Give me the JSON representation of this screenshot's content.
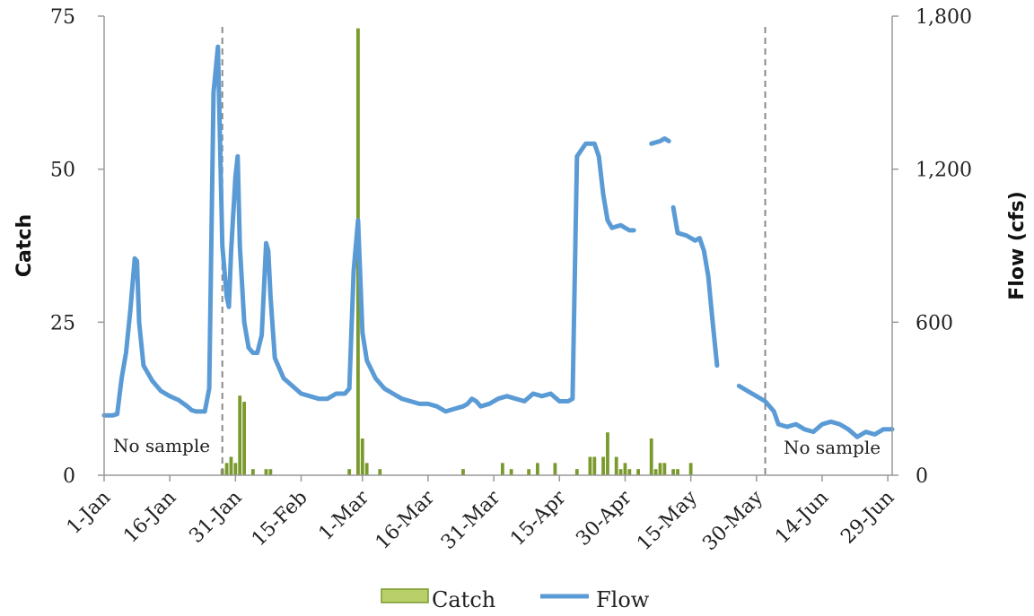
{
  "chart_data": {
    "type": "bar+line",
    "title": "",
    "xlabel": "",
    "y_left_label": "Catch",
    "y_right_label": "Flow (cfs)",
    "y_left_lim": [
      0,
      75
    ],
    "y_right_lim": [
      0,
      1800
    ],
    "y_left_ticks": [
      "0",
      "25",
      "50",
      "75"
    ],
    "y_right_ticks": [
      "0",
      "600",
      "1,200",
      "1,800"
    ],
    "x_range_days": [
      1,
      181
    ],
    "x_ticks": [
      {
        "day": 1,
        "label": "1-Jan"
      },
      {
        "day": 16,
        "label": "16-Jan"
      },
      {
        "day": 31,
        "label": "31-Jan"
      },
      {
        "day": 46,
        "label": "15-Feb"
      },
      {
        "day": 60,
        "label": "1-Mar"
      },
      {
        "day": 75,
        "label": "16-Mar"
      },
      {
        "day": 90,
        "label": "31-Mar"
      },
      {
        "day": 105,
        "label": "15-Apr"
      },
      {
        "day": 120,
        "label": "30-Apr"
      },
      {
        "day": 135,
        "label": "15-May"
      },
      {
        "day": 150,
        "label": "30-May"
      },
      {
        "day": 165,
        "label": "14-Jun"
      },
      {
        "day": 180,
        "label": "29-Jun"
      }
    ],
    "no_sample_markers": [
      28,
      152
    ],
    "annotations": [
      "No sample",
      "No sample"
    ],
    "legend": [
      "Catch",
      "Flow"
    ],
    "legend_position": "bottom",
    "colors": {
      "catch": "#7a9a2e",
      "catch_light": "#b9cf6a",
      "flow": "#5b9bd5",
      "marker": "#8a8a8a",
      "axis": "#999999"
    },
    "catch": {
      "name": "Catch",
      "points": [
        [
          28,
          1
        ],
        [
          29,
          2
        ],
        [
          30,
          3
        ],
        [
          31,
          2
        ],
        [
          32,
          13
        ],
        [
          33,
          12
        ],
        [
          35,
          1
        ],
        [
          38,
          1
        ],
        [
          39,
          1
        ],
        [
          57,
          1
        ],
        [
          59,
          73
        ],
        [
          60,
          6
        ],
        [
          61,
          2
        ],
        [
          64,
          1
        ],
        [
          83,
          1
        ],
        [
          92,
          2
        ],
        [
          94,
          1
        ],
        [
          98,
          1
        ],
        [
          100,
          2
        ],
        [
          104,
          2
        ],
        [
          109,
          1
        ],
        [
          112,
          3
        ],
        [
          113,
          3
        ],
        [
          115,
          3
        ],
        [
          116,
          7
        ],
        [
          118,
          3
        ],
        [
          119,
          1
        ],
        [
          120,
          2
        ],
        [
          121,
          1
        ],
        [
          123,
          1
        ],
        [
          126,
          6
        ],
        [
          127,
          1
        ],
        [
          128,
          2
        ],
        [
          129,
          2
        ],
        [
          131,
          1
        ],
        [
          132,
          1
        ],
        [
          135,
          2
        ]
      ]
    },
    "flow": {
      "name": "Flow",
      "segments": [
        [
          [
            1,
            235
          ],
          [
            3,
            235
          ],
          [
            4,
            240
          ],
          [
            5,
            380
          ],
          [
            6,
            480
          ],
          [
            7,
            650
          ],
          [
            8,
            850
          ],
          [
            8.5,
            840
          ],
          [
            9,
            600
          ],
          [
            10,
            430
          ],
          [
            12,
            370
          ],
          [
            14,
            330
          ],
          [
            16,
            310
          ],
          [
            18,
            295
          ],
          [
            20,
            270
          ],
          [
            21,
            255
          ],
          [
            22,
            250
          ],
          [
            23,
            250
          ],
          [
            24,
            250
          ],
          [
            25,
            340
          ],
          [
            26,
            1500
          ],
          [
            27,
            1680
          ],
          [
            28,
            900
          ],
          [
            29,
            700
          ],
          [
            29.5,
            660
          ],
          [
            30,
            880
          ],
          [
            31,
            1170
          ],
          [
            31.5,
            1250
          ],
          [
            32,
            900
          ],
          [
            33,
            600
          ],
          [
            34,
            500
          ],
          [
            35,
            480
          ],
          [
            36,
            480
          ],
          [
            37,
            550
          ],
          [
            38,
            910
          ],
          [
            38.5,
            880
          ],
          [
            39,
            700
          ],
          [
            40,
            460
          ],
          [
            42,
            380
          ],
          [
            44,
            350
          ],
          [
            46,
            320
          ],
          [
            48,
            310
          ],
          [
            50,
            300
          ],
          [
            52,
            300
          ],
          [
            54,
            320
          ],
          [
            56,
            320
          ],
          [
            57,
            340
          ],
          [
            58,
            800
          ],
          [
            59,
            1000
          ],
          [
            60,
            560
          ],
          [
            61,
            450
          ],
          [
            63,
            380
          ],
          [
            65,
            340
          ],
          [
            67,
            320
          ],
          [
            69,
            300
          ],
          [
            71,
            290
          ],
          [
            73,
            280
          ],
          [
            75,
            280
          ],
          [
            77,
            270
          ],
          [
            79,
            250
          ],
          [
            81,
            260
          ],
          [
            83,
            270
          ],
          [
            84,
            280
          ],
          [
            85,
            300
          ],
          [
            86,
            290
          ],
          [
            87,
            270
          ],
          [
            89,
            280
          ],
          [
            91,
            300
          ],
          [
            93,
            310
          ],
          [
            95,
            300
          ],
          [
            97,
            290
          ],
          [
            99,
            320
          ],
          [
            101,
            310
          ],
          [
            103,
            320
          ],
          [
            105,
            290
          ],
          [
            107,
            290
          ],
          [
            108,
            300
          ],
          [
            109,
            1250
          ],
          [
            111,
            1300
          ],
          [
            113,
            1300
          ],
          [
            114,
            1250
          ],
          [
            115,
            1100
          ],
          [
            116,
            1000
          ],
          [
            117,
            970
          ],
          [
            119,
            980
          ],
          [
            120,
            970
          ],
          [
            121,
            960
          ],
          [
            122,
            960
          ]
        ],
        [
          [
            126,
            1300
          ],
          [
            128,
            1310
          ],
          [
            129,
            1320
          ],
          [
            130,
            1310
          ]
        ],
        [
          [
            131,
            1050
          ],
          [
            132,
            950
          ],
          [
            134,
            940
          ],
          [
            136,
            920
          ],
          [
            137,
            930
          ],
          [
            138,
            880
          ],
          [
            139,
            780
          ],
          [
            140,
            600
          ],
          [
            141,
            430
          ]
        ],
        [
          [
            146,
            350
          ],
          [
            148,
            330
          ],
          [
            150,
            310
          ],
          [
            152,
            290
          ],
          [
            154,
            250
          ],
          [
            155,
            200
          ],
          [
            157,
            190
          ],
          [
            159,
            200
          ],
          [
            161,
            180
          ],
          [
            163,
            170
          ],
          [
            165,
            200
          ],
          [
            167,
            210
          ],
          [
            169,
            200
          ],
          [
            171,
            180
          ],
          [
            173,
            150
          ],
          [
            175,
            170
          ],
          [
            177,
            160
          ],
          [
            179,
            180
          ],
          [
            181,
            180
          ]
        ]
      ]
    }
  }
}
